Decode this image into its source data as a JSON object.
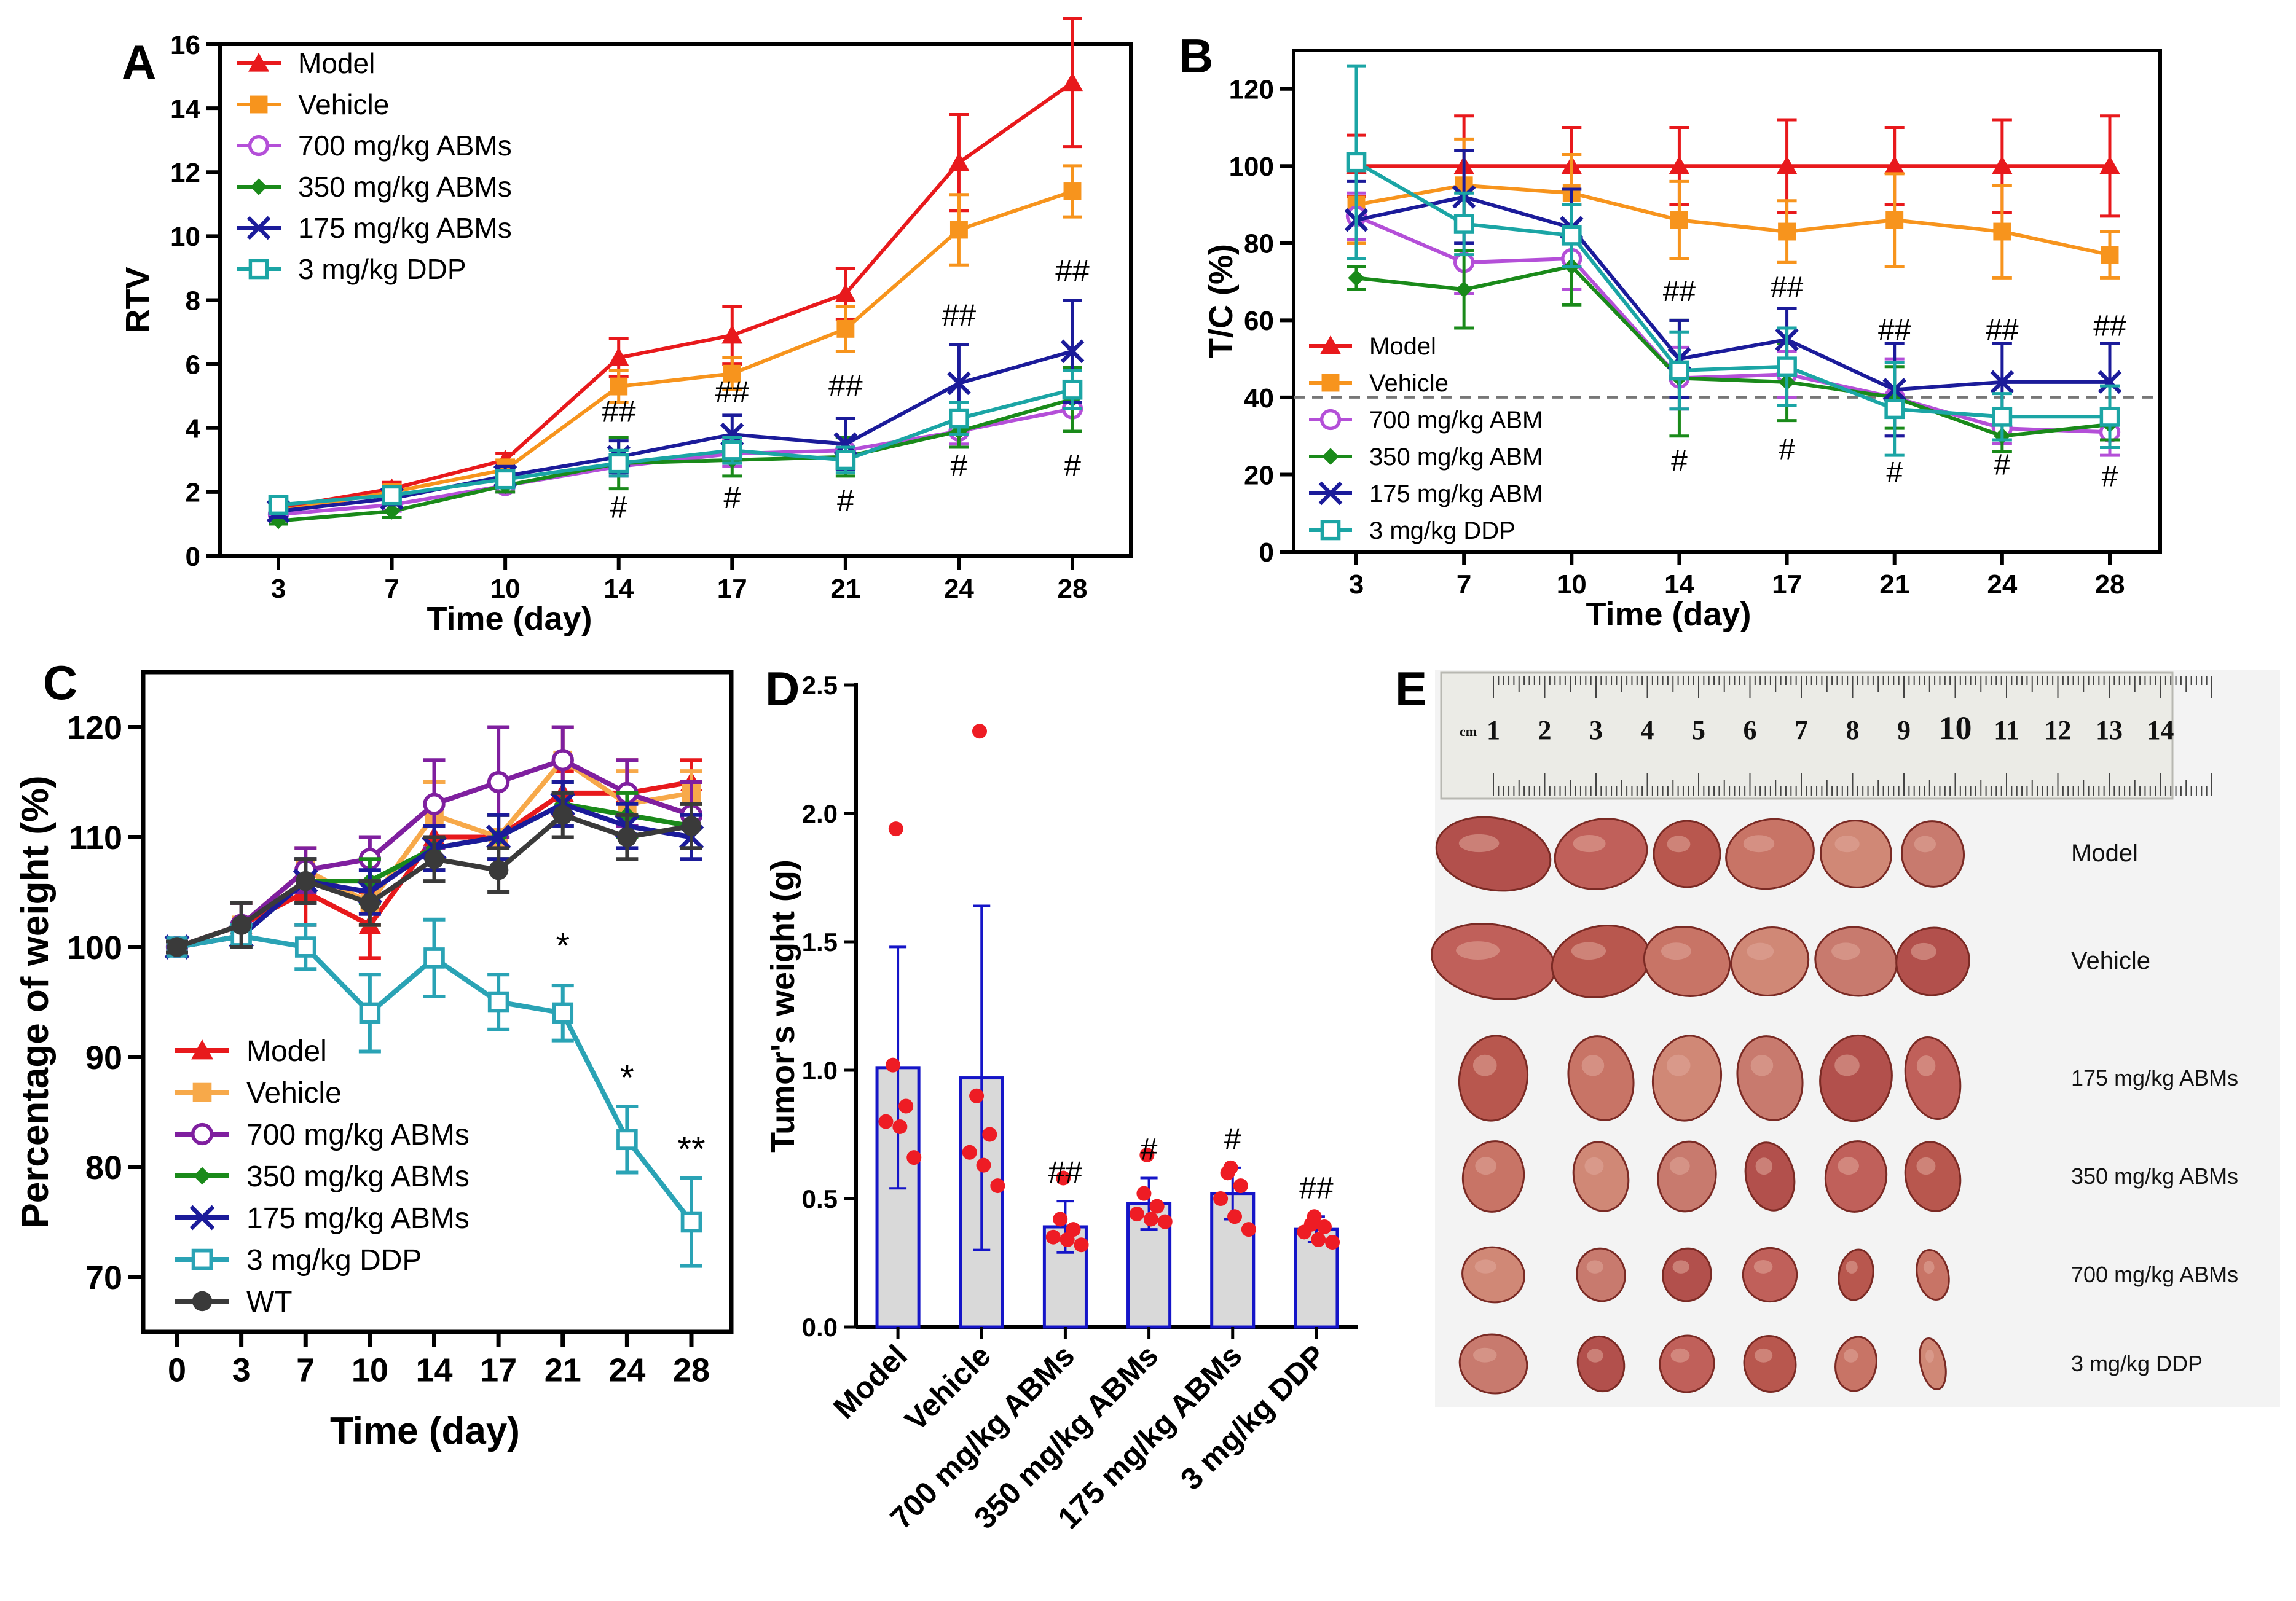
{
  "chart_data": [
    {
      "panel": "A",
      "type": "line",
      "xlabel": "Time (day)",
      "ylabel": "RTV",
      "categories": [
        3,
        7,
        10,
        14,
        17,
        21,
        24,
        28
      ],
      "ylim": [
        0,
        16
      ],
      "yticks": [
        0,
        2,
        4,
        6,
        8,
        10,
        12,
        14,
        16
      ],
      "legend_position": "top-left",
      "series": [
        {
          "name": "Model",
          "color": "#e8191c",
          "marker": "triangle",
          "values": [
            1.5,
            2.1,
            3.0,
            6.2,
            6.9,
            8.2,
            12.3,
            14.8
          ],
          "err": [
            0.2,
            0.2,
            0.2,
            0.6,
            0.9,
            0.8,
            1.5,
            2.0
          ]
        },
        {
          "name": "Vehicle",
          "color": "#f7941d",
          "marker": "square",
          "values": [
            1.4,
            2.0,
            2.7,
            5.3,
            5.7,
            7.1,
            10.2,
            11.4
          ],
          "err": [
            0.2,
            0.2,
            0.3,
            0.5,
            0.5,
            0.7,
            1.1,
            0.8
          ]
        },
        {
          "name": "700 mg/kg ABMs",
          "color": "#b44fd8",
          "marker": "circle-open",
          "values": [
            1.3,
            1.6,
            2.2,
            2.8,
            3.2,
            3.3,
            3.9,
            4.6
          ],
          "err": [
            0.2,
            0.2,
            0.2,
            0.3,
            0.4,
            0.4,
            0.4,
            0.7
          ]
        },
        {
          "name": "350 mg/kg ABMs",
          "color": "#1a8a1a",
          "marker": "diamond",
          "values": [
            1.1,
            1.4,
            2.2,
            2.9,
            3.0,
            3.1,
            3.9,
            4.9
          ],
          "err": [
            0.1,
            0.2,
            0.2,
            0.8,
            0.5,
            0.6,
            0.5,
            1.0
          ]
        },
        {
          "name": "175 mg/kg ABMs",
          "color": "#1b1b9a",
          "marker": "x",
          "values": [
            1.4,
            1.8,
            2.5,
            3.1,
            3.8,
            3.5,
            5.4,
            6.4
          ],
          "err": [
            0.2,
            0.2,
            0.3,
            0.5,
            0.6,
            0.8,
            1.2,
            1.6
          ]
        },
        {
          "name": "3 mg/kg DDP",
          "color": "#1ba5a5",
          "marker": "square-open",
          "values": [
            1.6,
            1.9,
            2.4,
            2.9,
            3.3,
            3.0,
            4.3,
            5.2
          ],
          "err": [
            0.2,
            0.2,
            0.2,
            0.4,
            0.4,
            0.4,
            0.5,
            0.6
          ]
        }
      ],
      "annotations": [
        {
          "x": 14,
          "y": 4.2,
          "text": "##"
        },
        {
          "x": 17,
          "y": 4.8,
          "text": "##"
        },
        {
          "x": 21,
          "y": 5.0,
          "text": "##"
        },
        {
          "x": 24,
          "y": 7.2,
          "text": "##"
        },
        {
          "x": 28,
          "y": 8.6,
          "text": "##"
        },
        {
          "x": 14,
          "y": 1.2,
          "text": "#"
        },
        {
          "x": 17,
          "y": 1.5,
          "text": "#"
        },
        {
          "x": 21,
          "y": 1.4,
          "text": "#"
        },
        {
          "x": 24,
          "y": 2.5,
          "text": "#"
        },
        {
          "x": 28,
          "y": 2.5,
          "text": "#"
        }
      ]
    },
    {
      "panel": "B",
      "type": "line",
      "xlabel": "Time (day)",
      "ylabel": "T/C (%)",
      "categories": [
        3,
        7,
        10,
        14,
        17,
        21,
        24,
        28
      ],
      "ylim": [
        0,
        130
      ],
      "yticks": [
        0,
        20,
        40,
        60,
        80,
        100,
        120
      ],
      "reference_line": 40,
      "legend_position": "middle-left",
      "series": [
        {
          "name": "Model",
          "color": "#e8191c",
          "marker": "triangle",
          "values": [
            100,
            100,
            100,
            100,
            100,
            100,
            100,
            100
          ],
          "err": [
            8,
            13,
            10,
            10,
            12,
            10,
            12,
            13
          ]
        },
        {
          "name": "Vehicle",
          "color": "#f7941d",
          "marker": "square",
          "values": [
            90,
            95,
            93,
            86,
            83,
            86,
            83,
            77
          ],
          "err": [
            10,
            12,
            10,
            10,
            8,
            12,
            12,
            6
          ]
        },
        {
          "name": "700 mg/kg ABM",
          "color": "#b44fd8",
          "marker": "circle-open",
          "values": [
            87,
            75,
            76,
            45,
            46,
            40,
            32,
            31
          ],
          "err": [
            6,
            8,
            8,
            8,
            6,
            10,
            4,
            6
          ]
        },
        {
          "name": "350 mg/kg ABM",
          "color": "#1a8a1a",
          "marker": "diamond",
          "values": [
            71,
            68,
            74,
            45,
            44,
            40,
            30,
            33
          ],
          "err": [
            3,
            10,
            10,
            15,
            10,
            8,
            4,
            4
          ]
        },
        {
          "name": "175 mg/kg ABM",
          "color": "#1b1b9a",
          "marker": "x",
          "values": [
            86,
            92,
            84,
            50,
            55,
            42,
            44,
            44
          ],
          "err": [
            10,
            12,
            10,
            10,
            8,
            12,
            10,
            10
          ]
        },
        {
          "name": "3 mg/kg DDP",
          "color": "#1ba5a5",
          "marker": "square-open",
          "values": [
            101,
            85,
            82,
            47,
            48,
            37,
            35,
            35
          ],
          "err": [
            25,
            8,
            8,
            10,
            10,
            12,
            6,
            8
          ]
        }
      ],
      "annotations": [
        {
          "x": 14,
          "y": 65,
          "text": "##"
        },
        {
          "x": 17,
          "y": 66,
          "text": "##"
        },
        {
          "x": 21,
          "y": 55,
          "text": "##"
        },
        {
          "x": 24,
          "y": 55,
          "text": "##"
        },
        {
          "x": 28,
          "y": 56,
          "text": "##"
        },
        {
          "x": 14,
          "y": 21,
          "text": "#"
        },
        {
          "x": 17,
          "y": 24,
          "text": "#"
        },
        {
          "x": 21,
          "y": 18,
          "text": "#"
        },
        {
          "x": 24,
          "y": 20,
          "text": "#"
        },
        {
          "x": 28,
          "y": 17,
          "text": "#"
        }
      ]
    },
    {
      "panel": "C",
      "type": "line",
      "xlabel": "Time (day)",
      "ylabel": "Percentage of weight (%)",
      "categories": [
        0,
        3,
        7,
        10,
        14,
        17,
        21,
        24,
        28
      ],
      "ylim": [
        65,
        125
      ],
      "yticks": [
        70,
        80,
        90,
        100,
        110,
        120
      ],
      "legend_position": "bottom-left",
      "series": [
        {
          "name": "Model",
          "color": "#e8191c",
          "marker": "triangle",
          "values": [
            100,
            102,
            105,
            102,
            110,
            110,
            114,
            114,
            115
          ],
          "err": [
            0.5,
            2,
            3,
            3,
            3,
            2,
            2,
            3,
            2
          ]
        },
        {
          "name": "Vehicle",
          "color": "#f7a94a",
          "marker": "square",
          "values": [
            100,
            102,
            107,
            104,
            112,
            110,
            117,
            113,
            114
          ],
          "err": [
            0.5,
            2,
            2,
            2,
            3,
            2,
            3,
            3,
            2
          ]
        },
        {
          "name": "700 mg/kg ABMs",
          "color": "#7f1f9f",
          "marker": "circle-open",
          "values": [
            100,
            102,
            107,
            108,
            113,
            115,
            117,
            114,
            112
          ],
          "err": [
            0.5,
            2,
            2,
            2,
            4,
            5,
            3,
            3,
            3
          ]
        },
        {
          "name": "350 mg/kg ABMs",
          "color": "#1a8a1a",
          "marker": "diamond",
          "values": [
            100,
            101,
            106,
            106,
            109,
            110,
            113,
            112,
            111
          ],
          "err": [
            0.5,
            1,
            2,
            2,
            2,
            2,
            2,
            2,
            2
          ]
        },
        {
          "name": "175 mg/kg ABMs",
          "color": "#1b1b9a",
          "marker": "x",
          "values": [
            100,
            101,
            106,
            105,
            109,
            110,
            113,
            111,
            110
          ],
          "err": [
            0.5,
            1,
            2,
            2,
            2,
            2,
            2,
            2,
            2
          ]
        },
        {
          "name": "3 mg/kg DDP",
          "color": "#2aa3b5",
          "marker": "square-open",
          "values": [
            100,
            101,
            100,
            94,
            99,
            95,
            94,
            82.5,
            75
          ],
          "err": [
            0.5,
            1,
            2,
            3.5,
            3.5,
            2.5,
            2.5,
            3,
            4
          ]
        },
        {
          "name": "WT",
          "color": "#3a3a3a",
          "marker": "circle",
          "values": [
            100,
            102,
            106,
            104,
            108,
            107,
            112,
            110,
            111
          ],
          "err": [
            0.5,
            2,
            2,
            2,
            2,
            2,
            2,
            2,
            2
          ]
        }
      ],
      "annotations": [
        {
          "x": 21,
          "y": 99,
          "text": "*"
        },
        {
          "x": 24,
          "y": 87,
          "text": "*"
        },
        {
          "x": 28,
          "y": 80.5,
          "text": "**"
        }
      ]
    },
    {
      "panel": "D",
      "type": "bar",
      "xlabel": "",
      "ylabel": "Tumor's weight (g)",
      "categories": [
        "Model",
        "Vehicle",
        "700 mg/kg ABMs",
        "350 mg/kg ABMs",
        "175 mg/kg ABMs",
        "3 mg/kg DDP"
      ],
      "values": [
        1.01,
        0.97,
        0.39,
        0.48,
        0.52,
        0.38
      ],
      "err": [
        0.47,
        0.67,
        0.1,
        0.1,
        0.1,
        0.05
      ],
      "ylim": [
        0,
        2.5
      ],
      "yticks": [
        0.0,
        0.5,
        1.0,
        1.5,
        2.0,
        2.5
      ],
      "points": [
        [
          1.94,
          1.02,
          0.86,
          0.8,
          0.78,
          0.66
        ],
        [
          2.32,
          0.9,
          0.75,
          0.68,
          0.63,
          0.55
        ],
        [
          0.58,
          0.42,
          0.38,
          0.35,
          0.34,
          0.32
        ],
        [
          0.67,
          0.52,
          0.47,
          0.44,
          0.42,
          0.41
        ],
        [
          0.62,
          0.6,
          0.55,
          0.5,
          0.43,
          0.38
        ],
        [
          0.43,
          0.4,
          0.39,
          0.37,
          0.34,
          0.33
        ]
      ],
      "annotations": [
        "",
        "",
        "##",
        "#",
        "#",
        "##"
      ]
    }
  ],
  "panel_letters": [
    "A",
    "B",
    "C",
    "D",
    "E"
  ],
  "photo": {
    "ruler_unit": "cm",
    "ruler_numbers": [
      "1",
      "2",
      "3",
      "4",
      "5",
      "6",
      "7",
      "8",
      "9",
      "10",
      "11",
      "12",
      "13",
      "14"
    ],
    "row_labels": [
      "Model",
      "Vehicle",
      "175 mg/kg ABMs",
      "350 mg/kg ABMs",
      "700 mg/kg ABMs",
      "3 mg/kg DDP"
    ],
    "tumor_counts": [
      6,
      6,
      6,
      6,
      6,
      6
    ]
  }
}
